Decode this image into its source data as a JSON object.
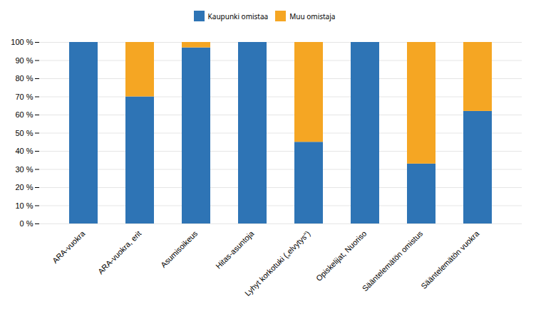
{
  "chart_data": {
    "type": "bar",
    "stacked": true,
    "categories": [
      "ARA-vuokra",
      "ARA-vuokra, erit",
      "Asumisoikeus",
      "Hitas-asuntoja",
      "Lyhyt korkotuki („elvytys“)",
      "Opiskelijat, Nuoriso",
      "Sääntelemätön omistus",
      "Sääntelemätön vuokra"
    ],
    "series": [
      {
        "name": "Kaupunki omistaa",
        "color": "#2E74B5",
        "values": [
          100,
          70,
          97,
          100,
          45,
          100,
          33,
          62
        ]
      },
      {
        "name": "Muu omistaja",
        "color": "#F5A623",
        "values": [
          0,
          30,
          3,
          0,
          55,
          0,
          67,
          38
        ]
      }
    ],
    "ylim": [
      0,
      100
    ],
    "yticks": [
      {
        "value": 0,
        "label": "0 %"
      },
      {
        "value": 10,
        "label": "10 %"
      },
      {
        "value": 20,
        "label": "20 %"
      },
      {
        "value": 30,
        "label": "30 %"
      },
      {
        "value": 40,
        "label": "40 %"
      },
      {
        "value": 50,
        "label": "50 %"
      },
      {
        "value": 60,
        "label": "60 %"
      },
      {
        "value": 70,
        "label": "70 %"
      },
      {
        "value": 80,
        "label": "80 %"
      },
      {
        "value": 90,
        "label": "90 %"
      },
      {
        "value": 100,
        "label": "100 %"
      }
    ],
    "grid": true,
    "legend": "top"
  }
}
